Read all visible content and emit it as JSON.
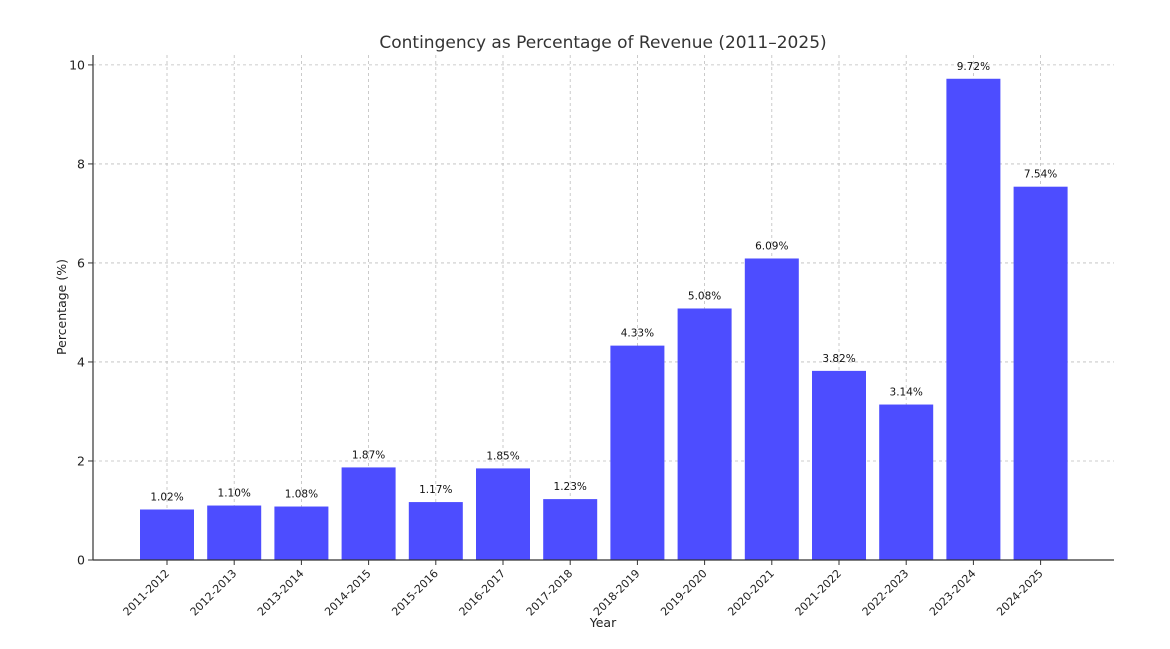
{
  "chart_data": {
    "type": "bar",
    "title": "Contingency as Percentage of Revenue (2011–2025)",
    "xlabel": "Year",
    "ylabel": "Percentage (%)",
    "ylim": [
      0,
      10.2
    ],
    "yticks": [
      0,
      2,
      4,
      6,
      8,
      10
    ],
    "grid": true,
    "bar_color": "#4d4dff",
    "categories": [
      "2011-2012",
      "2012-2013",
      "2013-2014",
      "2014-2015",
      "2015-2016",
      "2016-2017",
      "2017-2018",
      "2018-2019",
      "2019-2020",
      "2020-2021",
      "2021-2022",
      "2022-2023",
      "2023-2024",
      "2024-2025"
    ],
    "values": [
      1.02,
      1.1,
      1.08,
      1.87,
      1.17,
      1.85,
      1.23,
      4.33,
      5.08,
      6.09,
      3.82,
      3.14,
      9.72,
      7.54
    ],
    "data_labels": [
      "1.02%",
      "1.10%",
      "1.08%",
      "1.87%",
      "1.17%",
      "1.85%",
      "1.23%",
      "4.33%",
      "5.08%",
      "6.09%",
      "3.82%",
      "3.14%",
      "9.72%",
      "7.54%"
    ]
  }
}
